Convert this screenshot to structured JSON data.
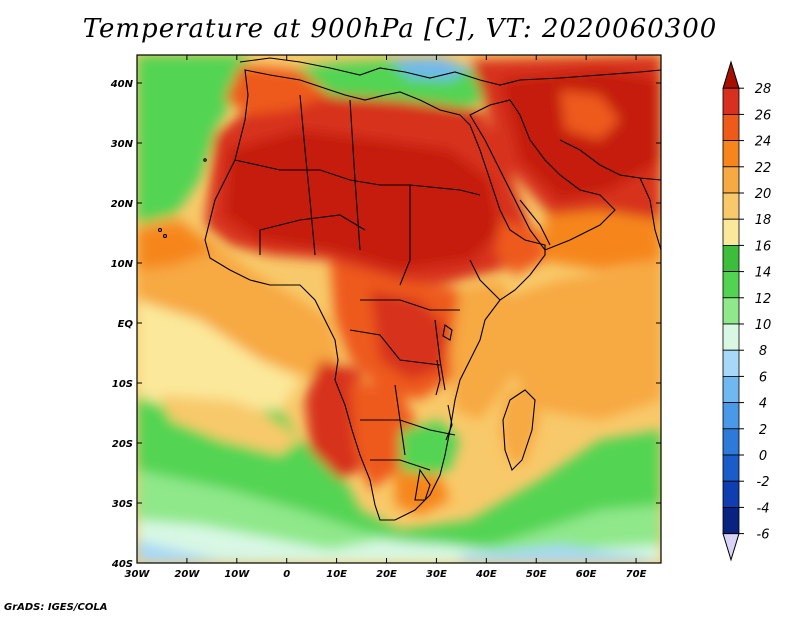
{
  "title": "Temperature at 900hPa [C], VT: 2020060300",
  "footer": "GrADS: IGES/COLA",
  "map": {
    "region": "Africa and surrounding seas",
    "lon_labels": [
      "30W",
      "20W",
      "10W",
      "0",
      "10E",
      "20E",
      "30E",
      "40E",
      "50E",
      "60E",
      "70E"
    ],
    "lat_labels": [
      "40N",
      "30N",
      "20N",
      "10N",
      "EQ",
      "10S",
      "20S",
      "30S",
      "40S"
    ]
  },
  "colorbar": {
    "levels": [
      "28",
      "26",
      "24",
      "22",
      "20",
      "18",
      "16",
      "14",
      "12",
      "10",
      "8",
      "6",
      "4",
      "2",
      "0",
      "-2",
      "-4",
      "-6"
    ],
    "colors": [
      "#a50f00",
      "#d7301f",
      "#ee5a1a",
      "#f6861c",
      "#f7a942",
      "#f8c96a",
      "#fbe89a",
      "#3cbe3c",
      "#52d452",
      "#8fe88a",
      "#d8f8e4",
      "#a8d8f8",
      "#70b8f0",
      "#4a98e8",
      "#2e7ad8",
      "#1a5cc8",
      "#0e3eb0",
      "#0a2280",
      "#d8d4f8"
    ]
  }
}
